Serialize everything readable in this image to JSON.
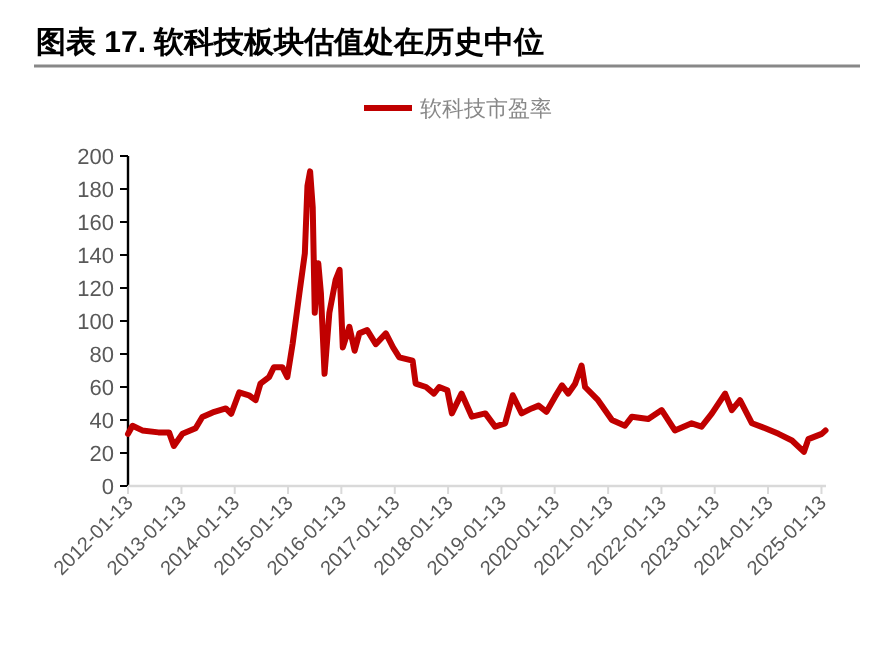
{
  "chart_data": {
    "type": "line",
    "title": "图表 17. 软科技板块估值处在历史中位",
    "x": [
      "2012-01-13",
      "2012-02-13",
      "2012-04-20",
      "2012-08-08",
      "2012-10-20",
      "2012-11-22",
      "2013-01-20",
      "2013-04-20",
      "2013-06-05",
      "2013-08-15",
      "2013-11-13",
      "2013-12-20",
      "2014-02-13",
      "2014-04-20",
      "2014-06-05",
      "2014-07-08",
      "2014-09-05",
      "2014-10-08",
      "2014-12-05",
      "2015-01-08",
      "2015-02-13",
      "2015-04-01",
      "2015-05-08",
      "2015-05-26",
      "2015-06-13",
      "2015-07-01",
      "2015-07-15",
      "2015-08-08",
      "2015-08-26",
      "2015-09-20",
      "2015-10-23",
      "2015-12-05",
      "2016-01-01",
      "2016-01-23",
      "2016-03-08",
      "2016-04-13",
      "2016-05-15",
      "2016-07-08",
      "2016-09-05",
      "2016-11-13",
      "2017-01-01",
      "2017-02-13",
      "2017-05-15",
      "2017-06-05",
      "2017-08-15",
      "2017-10-08",
      "2017-11-13",
      "2018-01-08",
      "2018-02-08",
      "2018-04-15",
      "2018-06-25",
      "2018-09-25",
      "2018-12-01",
      "2019-02-08",
      "2019-04-01",
      "2019-06-01",
      "2019-08-08",
      "2019-09-25",
      "2019-11-18",
      "2020-01-15",
      "2020-03-03",
      "2020-04-15",
      "2020-06-01",
      "2020-07-15",
      "2020-08-08",
      "2020-11-05",
      "2021-02-08",
      "2021-05-08",
      "2021-06-25",
      "2021-10-15",
      "2022-01-15",
      "2022-04-15",
      "2022-08-08",
      "2022-10-15",
      "2022-12-25",
      "2023-03-25",
      "2023-05-10",
      "2023-07-05",
      "2023-09-25",
      "2023-12-25",
      "2024-03-25",
      "2024-06-25",
      "2024-09-15",
      "2024-10-15",
      "2025-01-15",
      "2025-02-10"
    ],
    "series": [
      {
        "name": "软科技市盈率",
        "color": "#c00000",
        "values": [
          31.6,
          36.5,
          33.7,
          32.5,
          32.5,
          24.3,
          31.6,
          35,
          41.8,
          44.6,
          47,
          43.8,
          56.8,
          55,
          52,
          62,
          66,
          72,
          72,
          66,
          86,
          117,
          141,
          182,
          190.7,
          169,
          105,
          135,
          117,
          68,
          105,
          125,
          131,
          84,
          96.5,
          82,
          92.5,
          94.5,
          86,
          92.5,
          84,
          78,
          76,
          62,
          60,
          56,
          60,
          58,
          44,
          56,
          42,
          44,
          36,
          38,
          55,
          44,
          47,
          48.7,
          45,
          54,
          61,
          56,
          62,
          73,
          60,
          52,
          40,
          36.5,
          42,
          40.6,
          46,
          33.7,
          38,
          36,
          44,
          56,
          46,
          52,
          38,
          35,
          31.6,
          27.6,
          20.7,
          28.4,
          31.6,
          33.7
        ]
      }
    ],
    "xlim": [
      "2012-01-13",
      "2025-02-13"
    ],
    "xticks": [
      "2012-01-13",
      "2013-01-13",
      "2014-01-13",
      "2015-01-13",
      "2016-01-13",
      "2017-01-13",
      "2018-01-13",
      "2019-01-13",
      "2020-01-13",
      "2021-01-13",
      "2022-01-13",
      "2023-01-13",
      "2024-01-13",
      "2025-01-13"
    ],
    "ylim": [
      0,
      200
    ],
    "yticks": [
      0,
      20,
      40,
      60,
      80,
      100,
      120,
      140,
      160,
      180,
      200
    ],
    "legend": "top"
  }
}
